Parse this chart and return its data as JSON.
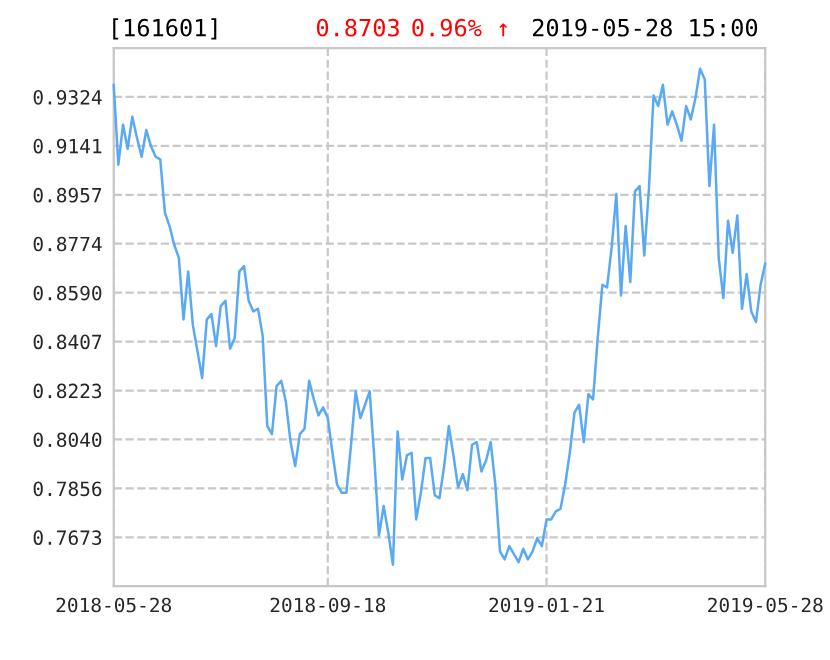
{
  "chart_data": {
    "type": "line",
    "title": "[161601]",
    "annotations": [
      "0.8703",
      "0.96% ↑",
      "2019-05-28 15:00"
    ],
    "categories": [
      "2018-05-28",
      null,
      null,
      null,
      null,
      null,
      null,
      null,
      null,
      null,
      null,
      null,
      null,
      null,
      null,
      null,
      null,
      null,
      null,
      null,
      null,
      null,
      null,
      null,
      null,
      null,
      null,
      null,
      null,
      null,
      null,
      null,
      null,
      null,
      null,
      null,
      null,
      null,
      null,
      null,
      null,
      null,
      null,
      null,
      null,
      null,
      "2018-09-18",
      null,
      null,
      null,
      null,
      null,
      null,
      null,
      null,
      null,
      null,
      null,
      null,
      null,
      null,
      null,
      null,
      null,
      null,
      null,
      null,
      null,
      null,
      null,
      null,
      null,
      null,
      null,
      null,
      null,
      null,
      null,
      null,
      null,
      null,
      null,
      null,
      null,
      null,
      null,
      null,
      null,
      null,
      null,
      null,
      null,
      null,
      "2019-01-21",
      null,
      null,
      null,
      null,
      null,
      null,
      null,
      null,
      null,
      null,
      null,
      null,
      null,
      null,
      null,
      null,
      null,
      null,
      null,
      null,
      null,
      null,
      null,
      null,
      null,
      null,
      null,
      null,
      null,
      null,
      null,
      null,
      null,
      null,
      null,
      null,
      null,
      null,
      null,
      null,
      null,
      null,
      null,
      null,
      null,
      null,
      "2019-05-28"
    ],
    "series": [
      {
        "color": "#5aa9f5",
        "values": [
          0.937,
          0.907,
          0.922,
          0.913,
          0.925,
          0.917,
          0.91,
          0.92,
          0.914,
          0.91,
          0.909,
          0.889,
          0.884,
          0.877,
          0.872,
          0.849,
          0.867,
          0.847,
          0.837,
          0.827,
          0.849,
          0.851,
          0.839,
          0.854,
          0.856,
          0.838,
          0.842,
          0.867,
          0.869,
          0.856,
          0.852,
          0.853,
          0.843,
          0.809,
          0.806,
          0.824,
          0.826,
          0.818,
          0.803,
          0.794,
          0.806,
          0.808,
          0.826,
          0.819,
          0.813,
          0.816,
          0.812,
          0.799,
          0.787,
          0.784,
          0.784,
          0.802,
          0.822,
          0.812,
          0.817,
          0.822,
          0.797,
          0.768,
          0.779,
          0.769,
          0.757,
          0.807,
          0.789,
          0.798,
          0.799,
          0.774,
          0.784,
          0.797,
          0.797,
          0.783,
          0.782,
          0.794,
          0.809,
          0.798,
          0.786,
          0.791,
          0.785,
          0.802,
          0.803,
          0.792,
          0.796,
          0.803,
          0.787,
          0.762,
          0.759,
          0.764,
          0.761,
          0.758,
          0.763,
          0.759,
          0.762,
          0.767,
          0.764,
          0.774,
          0.774,
          0.777,
          0.778,
          0.787,
          0.799,
          0.814,
          0.817,
          0.803,
          0.821,
          0.819,
          0.842,
          0.862,
          0.861,
          0.876,
          0.896,
          0.858,
          0.884,
          0.863,
          0.897,
          0.899,
          0.873,
          0.898,
          0.933,
          0.929,
          0.937,
          0.922,
          0.927,
          0.922,
          0.916,
          0.929,
          0.924,
          0.932,
          0.943,
          0.939,
          0.899,
          0.922,
          0.872,
          0.857,
          0.886,
          0.874,
          0.888,
          0.853,
          0.866,
          0.852,
          0.848,
          0.862,
          0.87
        ]
      }
    ],
    "ylim": [
      0.749,
      0.9507
    ],
    "yticks": [
      {
        "value": 0.7673,
        "label": "0.7673"
      },
      {
        "value": 0.7856,
        "label": "0.7856"
      },
      {
        "value": 0.804,
        "label": "0.8040"
      },
      {
        "value": 0.8223,
        "label": "0.8223"
      },
      {
        "value": 0.8407,
        "label": "0.8407"
      },
      {
        "value": 0.859,
        "label": "0.8590"
      },
      {
        "value": 0.8774,
        "label": "0.8774"
      },
      {
        "value": 0.8957,
        "label": "0.8957"
      },
      {
        "value": 0.9141,
        "label": "0.9141"
      },
      {
        "value": 0.9324,
        "label": "0.9324"
      }
    ],
    "grid": true,
    "line_style": "solid"
  }
}
